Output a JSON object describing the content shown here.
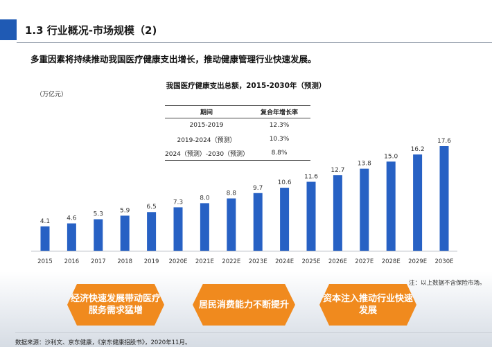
{
  "header": {
    "title": "1.3 行业概况-市场规模（2)",
    "subtitle": "多重因素将持续推动我国医疗健康支出增长，推动健康管理行业快速发展。"
  },
  "chart_data": {
    "type": "bar",
    "title": "我国医疗健康支出总额，2015-2030年（预测）",
    "ylabel": "（万亿元）",
    "categories": [
      "2015",
      "2016",
      "2017",
      "2018",
      "2019",
      "2020E",
      "2021E",
      "2022E",
      "2023E",
      "2024E",
      "2025E",
      "2026E",
      "2027E",
      "2028E",
      "2029E",
      "2030E"
    ],
    "values": [
      4.1,
      4.6,
      5.3,
      5.9,
      6.5,
      7.3,
      8.0,
      8.8,
      9.7,
      10.6,
      11.6,
      12.7,
      13.8,
      15.0,
      16.2,
      17.6
    ],
    "ylim": [
      0,
      17.6
    ],
    "bar_color": "#2761c4",
    "table": {
      "headers": [
        "期间",
        "复合年增长率"
      ],
      "rows": [
        [
          "2015-2019",
          "12.3%"
        ],
        [
          "2019-2024（预测）",
          "10.3%"
        ],
        [
          "2024（预测）-2030（预测）",
          "8.8%"
        ]
      ]
    }
  },
  "note": "注：以上数据不含保险市场。",
  "drivers": [
    "经济快速发展带动医疗\n服务需求猛增",
    "居民消费能力不断提升",
    "资本注入推动行业快速\n发展"
  ],
  "source": "数据来源：沙利文、京东健康，《京东健康招股书》，2020年11月。",
  "colors": {
    "accent": "#1f5ab4",
    "bar": "#2761c4",
    "driver": "#f08a1e"
  }
}
